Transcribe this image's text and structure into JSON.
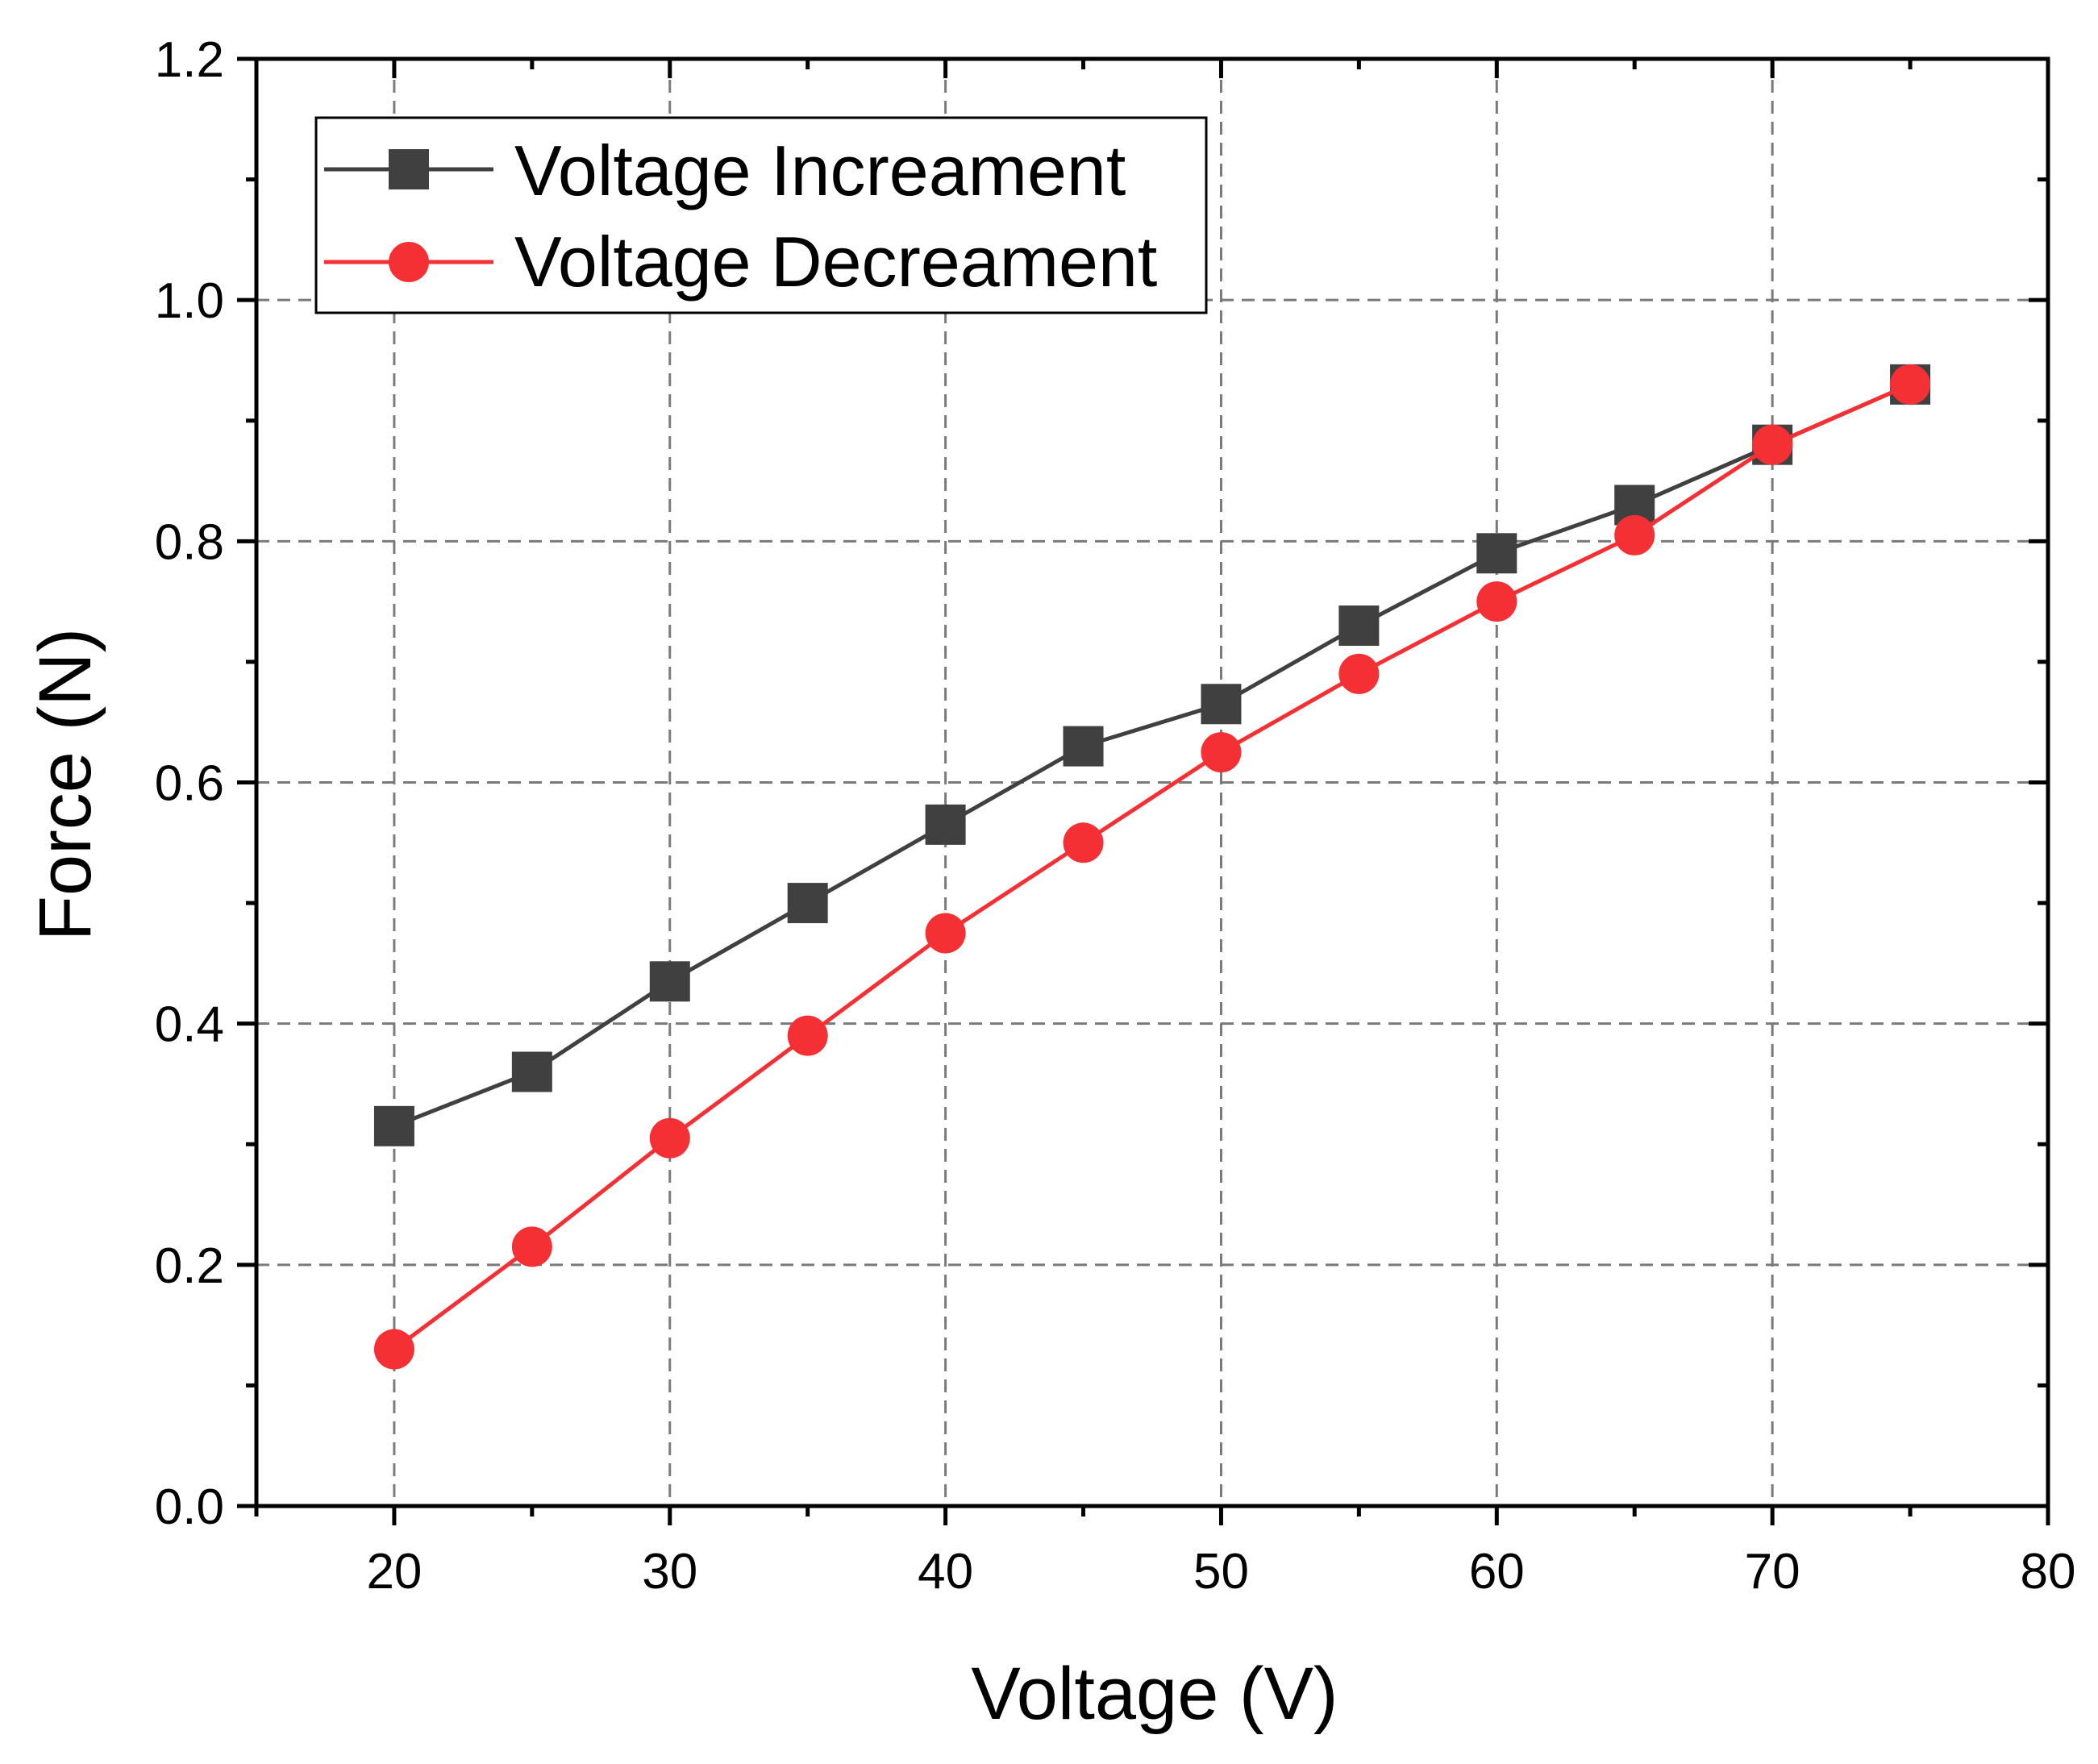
{
  "chart_data": {
    "type": "line",
    "title": "",
    "xlabel": "Voltage (V)",
    "ylabel": "Force (N)",
    "xlim": [
      15,
      80
    ],
    "ylim": [
      0.0,
      1.2
    ],
    "xticks": [
      20,
      30,
      40,
      50,
      60,
      70,
      80
    ],
    "xtick_labels": [
      "20",
      "30",
      "40",
      "50",
      "60",
      "70",
      "80"
    ],
    "yticks": [
      0.0,
      0.2,
      0.4,
      0.6,
      0.8,
      1.0,
      1.2
    ],
    "ytick_labels": [
      "0.0",
      "0.2",
      "0.4",
      "0.6",
      "0.8",
      "1.0",
      "1.2"
    ],
    "grid": true,
    "legend_position": "top-left",
    "x": [
      20,
      25,
      30,
      35,
      40,
      45,
      50,
      55,
      60,
      65,
      70,
      75
    ],
    "series": [
      {
        "name": "Voltage Increament",
        "color": "#404040",
        "marker": "square",
        "values": [
          0.315,
          0.36,
          0.435,
          0.5,
          0.565,
          0.63,
          0.665,
          0.73,
          0.79,
          0.83,
          0.88,
          0.93
        ]
      },
      {
        "name": "Voltage Decreament",
        "color": "#f53035",
        "marker": "circle",
        "values": [
          0.13,
          0.215,
          0.305,
          0.39,
          0.475,
          0.55,
          0.625,
          0.69,
          0.75,
          0.805,
          0.88,
          0.93
        ]
      }
    ]
  }
}
